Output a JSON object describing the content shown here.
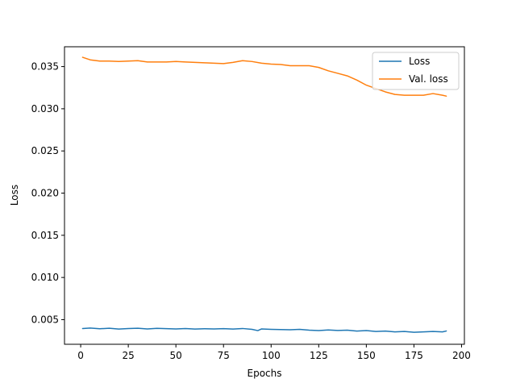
{
  "chart_data": {
    "type": "line",
    "title": "",
    "xlabel": "Epochs",
    "ylabel": "Loss",
    "xlim": [
      -8.5,
      201.5
    ],
    "ylim": [
      0.00208,
      0.03735
    ],
    "xticks": [
      0,
      25,
      50,
      75,
      100,
      125,
      150,
      175,
      200
    ],
    "yticks": [
      0.005,
      0.01,
      0.015,
      0.02,
      0.025,
      0.03,
      0.035
    ],
    "xtick_labels": [
      "0",
      "25",
      "50",
      "75",
      "100",
      "125",
      "150",
      "175",
      "200"
    ],
    "ytick_labels": [
      "0.005",
      "0.010",
      "0.015",
      "0.020",
      "0.025",
      "0.030",
      "0.035"
    ],
    "grid": false,
    "legend_position": "top-right",
    "series": [
      {
        "name": "Loss",
        "color": "#1f77b4",
        "x": [
          1,
          5,
          10,
          15,
          20,
          25,
          30,
          35,
          40,
          45,
          50,
          55,
          60,
          65,
          70,
          75,
          80,
          85,
          90,
          93,
          95,
          100,
          105,
          110,
          115,
          120,
          125,
          130,
          135,
          140,
          145,
          150,
          155,
          160,
          165,
          170,
          175,
          180,
          185,
          190,
          192
        ],
        "y": [
          0.00395,
          0.004,
          0.00392,
          0.00398,
          0.00388,
          0.00395,
          0.00398,
          0.0039,
          0.00397,
          0.00393,
          0.0039,
          0.00395,
          0.00388,
          0.00392,
          0.00389,
          0.00393,
          0.00388,
          0.00395,
          0.00385,
          0.0037,
          0.0039,
          0.00385,
          0.00382,
          0.0038,
          0.00385,
          0.00375,
          0.0037,
          0.00378,
          0.00372,
          0.00375,
          0.00365,
          0.0037,
          0.0036,
          0.00365,
          0.00355,
          0.0036,
          0.0035,
          0.00355,
          0.0036,
          0.00355,
          0.00365
        ]
      },
      {
        "name": "Val. loss",
        "color": "#ff7f0e",
        "x": [
          1,
          5,
          10,
          15,
          20,
          25,
          30,
          35,
          40,
          45,
          50,
          55,
          60,
          65,
          70,
          75,
          80,
          85,
          90,
          95,
          100,
          105,
          110,
          115,
          120,
          125,
          130,
          135,
          140,
          145,
          150,
          155,
          160,
          165,
          170,
          175,
          180,
          185,
          190,
          192
        ],
        "y": [
          0.0361,
          0.0358,
          0.03565,
          0.03565,
          0.0356,
          0.03565,
          0.0357,
          0.03555,
          0.03555,
          0.03555,
          0.0356,
          0.03555,
          0.0355,
          0.03545,
          0.0354,
          0.03535,
          0.0355,
          0.0357,
          0.0356,
          0.0354,
          0.0353,
          0.03525,
          0.0351,
          0.0351,
          0.0351,
          0.0349,
          0.0345,
          0.0342,
          0.0339,
          0.0334,
          0.0328,
          0.0324,
          0.032,
          0.0317,
          0.0316,
          0.0316,
          0.0316,
          0.0318,
          0.0316,
          0.0315
        ]
      }
    ]
  }
}
